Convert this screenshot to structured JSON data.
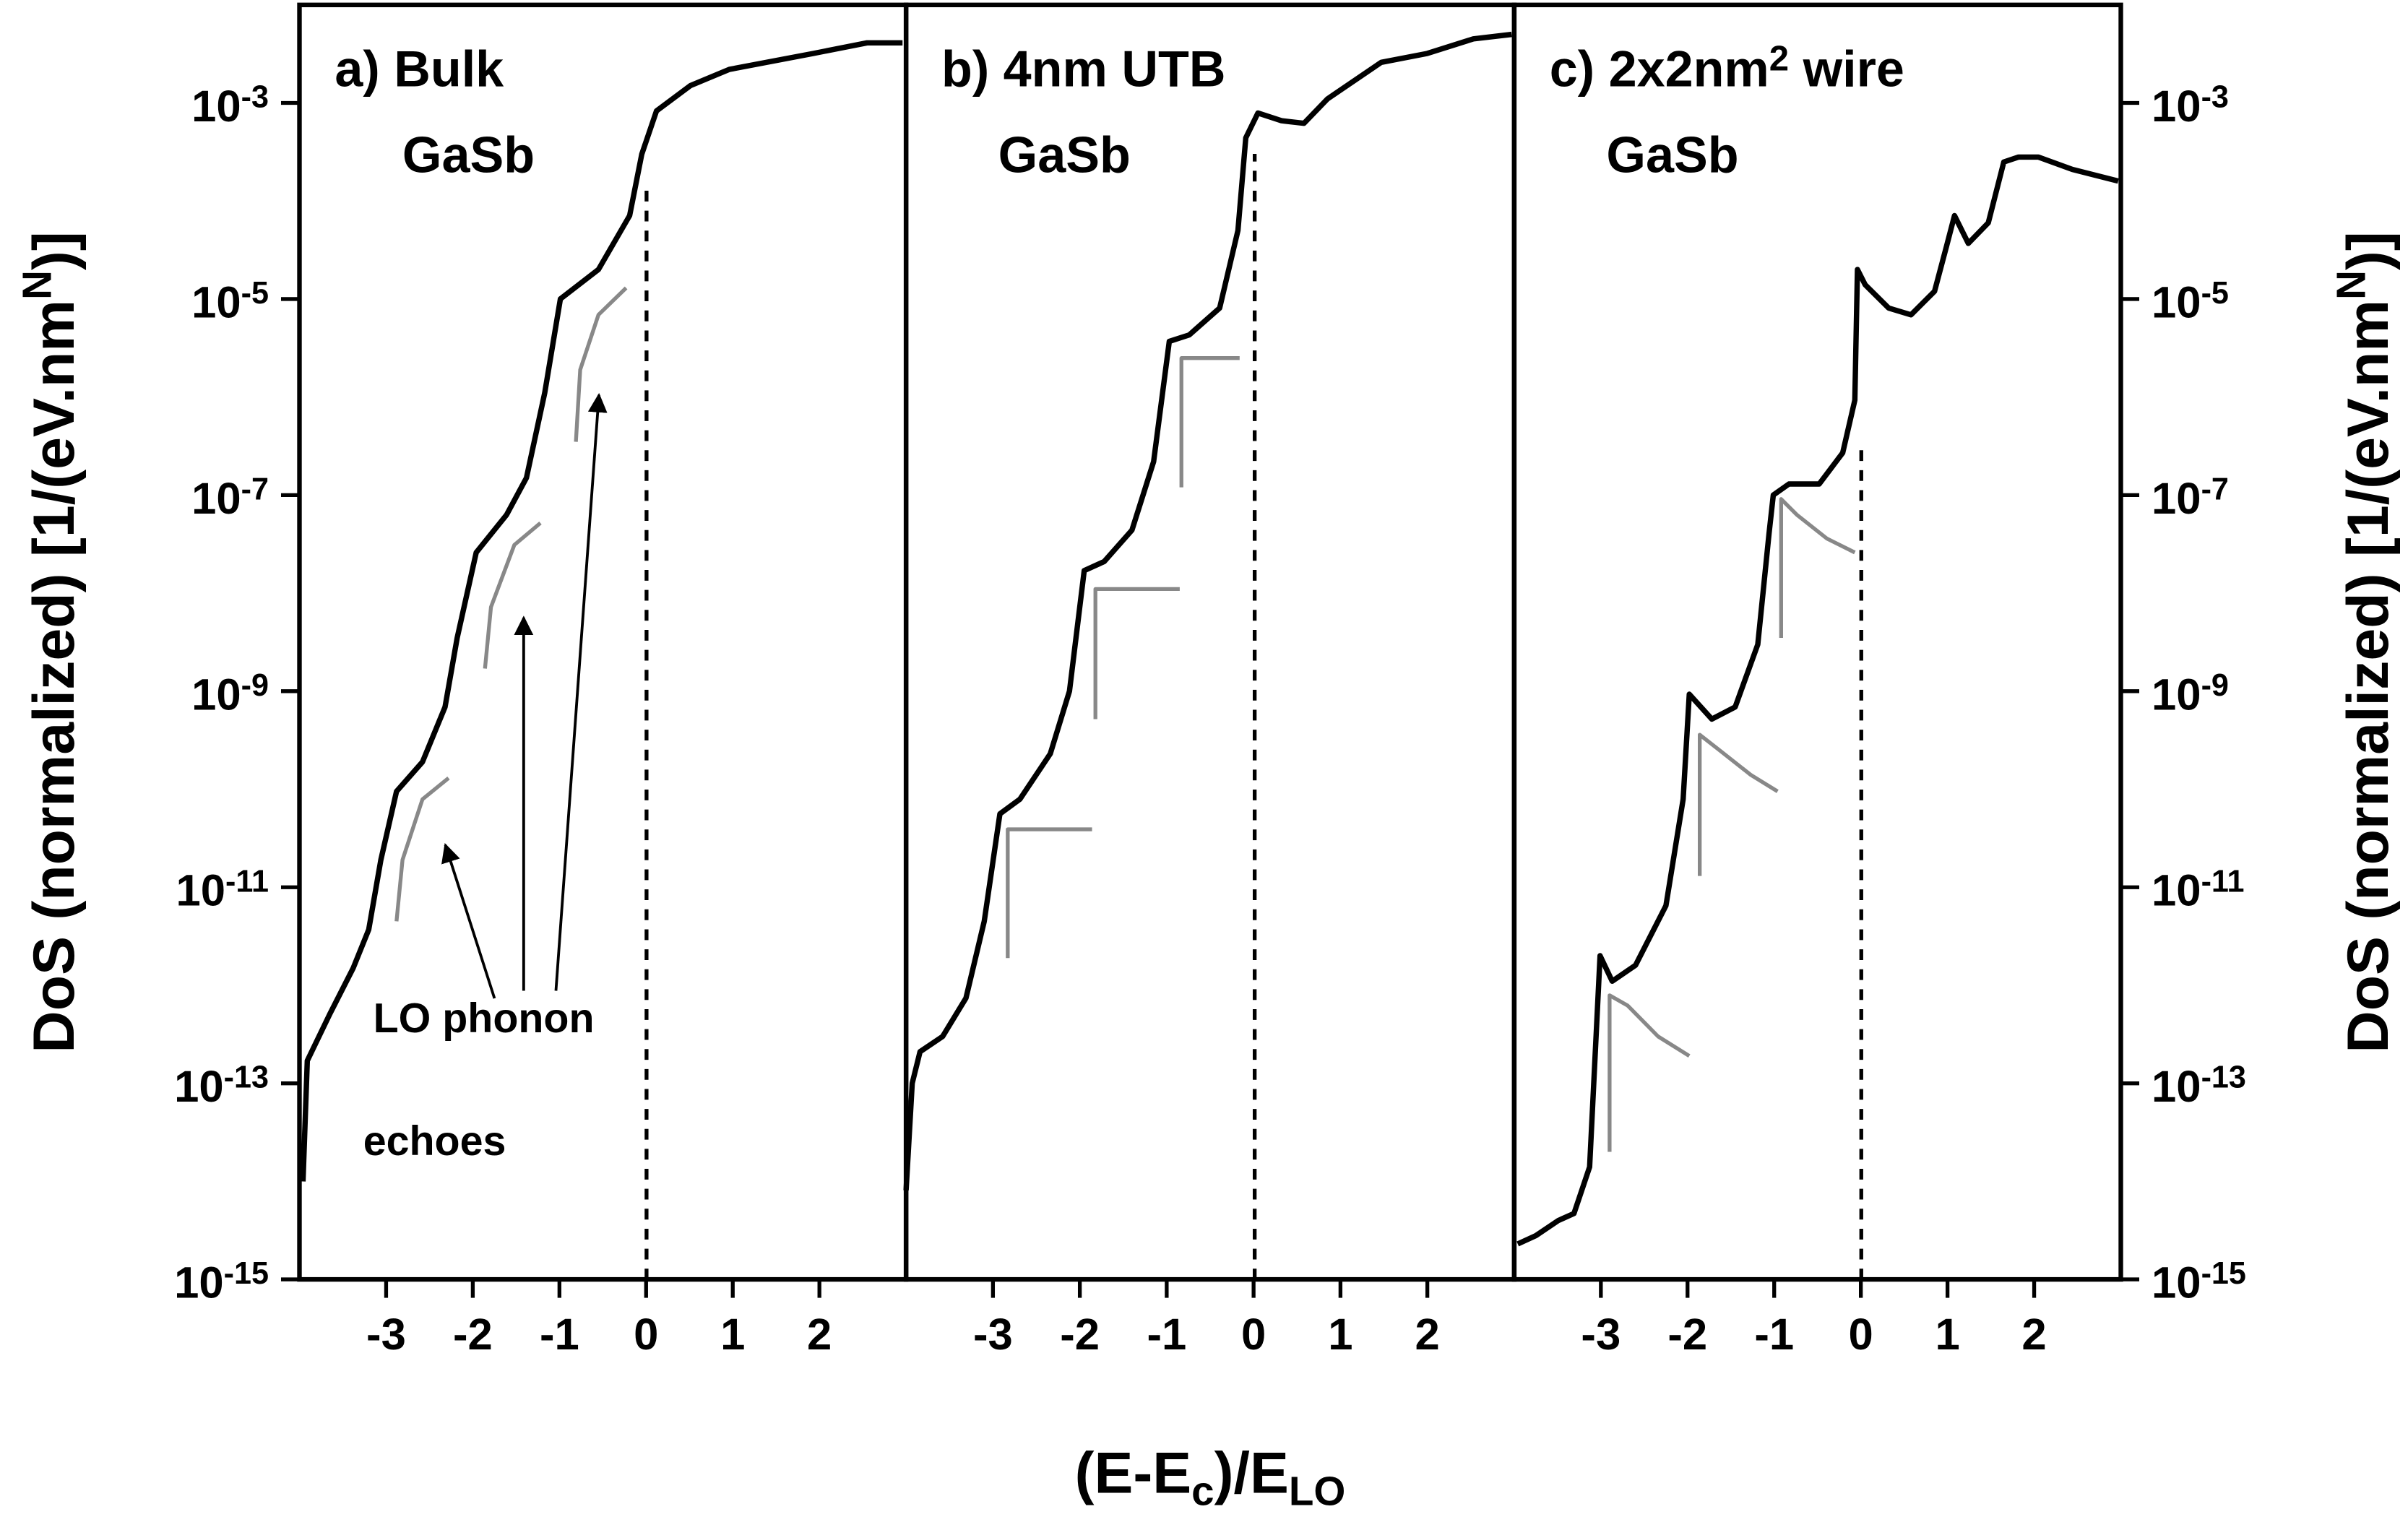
{
  "chart_data": [
    {
      "type": "line",
      "title": [
        "a) Bulk",
        "GaSb"
      ],
      "ylabel": "DoS (normalized) [1/(eV.nm^{N})]",
      "yaxis_side": "left",
      "xlim": [
        -4,
        3
      ],
      "xticks": [
        -3,
        -2,
        -1,
        0,
        1,
        2
      ],
      "ylim": [
        1e-15,
        0.01
      ],
      "log_scale": true,
      "grid": false,
      "yticks": [
        {
          "value": 0.001,
          "label": "10^{-3}"
        },
        {
          "value": 1e-05,
          "label": "10^{-5}"
        },
        {
          "value": 1e-07,
          "label": "10^{-7}"
        },
        {
          "value": 1e-09,
          "label": "10^{-9}"
        },
        {
          "value": 1e-11,
          "label": "10^{-11}"
        },
        {
          "value": 1e-13,
          "label": "10^{-13}"
        },
        {
          "value": 1e-15,
          "label": "10^{-15}"
        }
      ],
      "annotation": [
        "LO phonon",
        "echoes"
      ],
      "series": [
        {
          "color": "#000000",
          "x": [
            -3.96,
            -3.91,
            -3.65,
            -3.38,
            -3.2,
            -3.06,
            -2.88,
            -2.58,
            -2.32,
            -2.18,
            -1.96,
            -1.61,
            -1.38,
            -1.17,
            -0.99,
            -0.55,
            -0.19,
            -0.05,
            0.12,
            0.51,
            0.96,
            1.93,
            2.55,
            2.96
          ],
          "values": [
            1e-14,
            1.7e-13,
            5.1e-13,
            1.5e-12,
            3.7e-12,
            1.9e-11,
            9.5e-11,
            1.9e-10,
            6.9e-10,
            3.5e-09,
            2.6e-08,
            6.3e-08,
            1.5e-07,
            1.1e-06,
            1e-05,
            2e-05,
            7.1e-05,
            0.0003,
            0.00083,
            0.0015,
            0.0022,
            0.0032,
            0.0041,
            0.0041
          ]
        },
        {
          "color": "#888888",
          "x": [
            -2.88,
            -2.81,
            -2.58,
            -2.28
          ],
          "values": [
            4.5e-12,
            1.9e-11,
            7.9e-11,
            1.3e-10
          ]
        },
        {
          "color": "#888888",
          "x": [
            -1.86,
            -1.79,
            -1.52,
            -1.22
          ],
          "values": [
            1.7e-09,
            7.2e-09,
            3.1e-08,
            5.2e-08
          ]
        },
        {
          "color": "#888888",
          "x": [
            -0.81,
            -0.76,
            -0.55,
            -0.23
          ],
          "values": [
            3.5e-07,
            1.9e-06,
            6.9e-06,
            1.3e-05
          ]
        }
      ]
    },
    {
      "type": "line",
      "title": [
        "b) 4nm UTB",
        "GaSb"
      ],
      "xlabel": "(E-E_{c})/E_{LO}",
      "xlim": [
        -4,
        3
      ],
      "xticks": [
        -3,
        -2,
        -1,
        0,
        1,
        2
      ],
      "ylim": [
        1e-15,
        0.01
      ],
      "log_scale": true,
      "grid": false,
      "series": [
        {
          "color": "#000000",
          "x": [
            -4.0,
            -3.93,
            -3.84,
            -3.58,
            -3.31,
            -3.1,
            -2.92,
            -2.69,
            -2.34,
            -2.12,
            -1.95,
            -1.72,
            -1.4,
            -1.15,
            -0.97,
            -0.74,
            -0.39,
            -0.18,
            -0.09,
            0.05,
            0.32,
            0.58,
            0.85,
            1.47,
            2.0,
            2.53,
            2.97
          ],
          "values": [
            8.1e-15,
            1e-13,
            2.1e-13,
            3e-13,
            7.4e-13,
            4.5e-12,
            5.6e-11,
            7.9e-11,
            2.3e-10,
            1e-09,
            1.7e-08,
            2.1e-08,
            4.4e-08,
            2.2e-07,
            3.7e-06,
            4.3e-06,
            8.1e-06,
            5e-05,
            0.00044,
            0.00079,
            0.00066,
            0.00062,
            0.0011,
            0.0026,
            0.0032,
            0.0045,
            0.005
          ]
        },
        {
          "color": "#888888",
          "x": [
            -2.83,
            -2.83,
            -1.86
          ],
          "values": [
            1.9e-12,
            3.9e-11,
            3.9e-11
          ]
        },
        {
          "color": "#888888",
          "x": [
            -1.82,
            -1.82,
            -0.85
          ],
          "values": [
            5.2e-10,
            1.1e-08,
            1.1e-08
          ]
        },
        {
          "color": "#888888",
          "x": [
            -0.83,
            -0.83,
            -0.16
          ],
          "values": [
            1.2e-07,
            2.5e-06,
            2.5e-06
          ]
        }
      ]
    },
    {
      "type": "line",
      "title": [
        "c) 2x2nm^{2} wire",
        "GaSb"
      ],
      "ylabel": "DoS (normalized) [1/(eV.nm^{N})]",
      "yaxis_side": "right",
      "xlim": [
        -4,
        3
      ],
      "xticks": [
        -3,
        -2,
        -1,
        0,
        1,
        2
      ],
      "ylim": [
        1e-15,
        0.01
      ],
      "log_scale": true,
      "grid": false,
      "yticks": [
        {
          "value": 0.001,
          "label": "10^{-3}"
        },
        {
          "value": 1e-05,
          "label": "10^{-5}"
        },
        {
          "value": 1e-07,
          "label": "10^{-7}"
        },
        {
          "value": 1e-09,
          "label": "10^{-9}"
        },
        {
          "value": 1e-11,
          "label": "10^{-11}"
        },
        {
          "value": 1e-13,
          "label": "10^{-13}"
        },
        {
          "value": 1e-15,
          "label": "10^{-15}"
        }
      ],
      "series": [
        {
          "color": "#000000",
          "x": [
            -3.96,
            -3.75,
            -3.49,
            -3.31,
            -3.13,
            -3.01,
            -2.87,
            -2.6,
            -2.25,
            -2.05,
            -1.98,
            -1.72,
            -1.45,
            -1.19,
            -1.06,
            -1.01,
            -0.83,
            -0.48,
            -0.21,
            -0.07,
            -0.04,
            0.05,
            0.32,
            0.58,
            0.85,
            0.99,
            1.08,
            1.24,
            1.47,
            1.65,
            1.82,
            2.05,
            2.44,
            2.97
          ],
          "values": [
            2.3e-15,
            2.8e-15,
            4e-15,
            4.7e-15,
            1.4e-14,
            2e-12,
            1.1e-12,
            1.6e-12,
            6.5e-12,
            7.9e-11,
            9.3e-10,
            5.2e-10,
            6.9e-10,
            3e-09,
            4e-08,
            1e-07,
            1.3e-07,
            1.3e-07,
            2.7e-07,
            9.3e-07,
            2e-05,
            1.4e-05,
            8.1e-06,
            6.9e-06,
            1.2e-05,
            3.5e-05,
            7.1e-05,
            3.7e-05,
            6e-05,
            0.00025,
            0.00028,
            0.00028,
            0.00021,
            0.00016
          ]
        },
        {
          "color": "#888888",
          "x": [
            -2.9,
            -2.9,
            -2.69,
            -2.34,
            -1.98
          ],
          "values": [
            2e-14,
            7.9e-13,
            6.2e-13,
            3e-13,
            1.9e-13
          ]
        },
        {
          "color": "#888888",
          "x": [
            -1.86,
            -1.86,
            -1.63,
            -1.27,
            -0.96
          ],
          "values": [
            1.3e-11,
            3.6e-10,
            2.5e-10,
            1.4e-10,
            9.5e-11
          ]
        },
        {
          "color": "#888888",
          "x": [
            -0.92,
            -0.92,
            -0.74,
            -0.39,
            -0.07
          ],
          "values": [
            3.5e-09,
            9.1e-08,
            6.3e-08,
            3.6e-08,
            2.6e-08
          ]
        }
      ]
    }
  ]
}
